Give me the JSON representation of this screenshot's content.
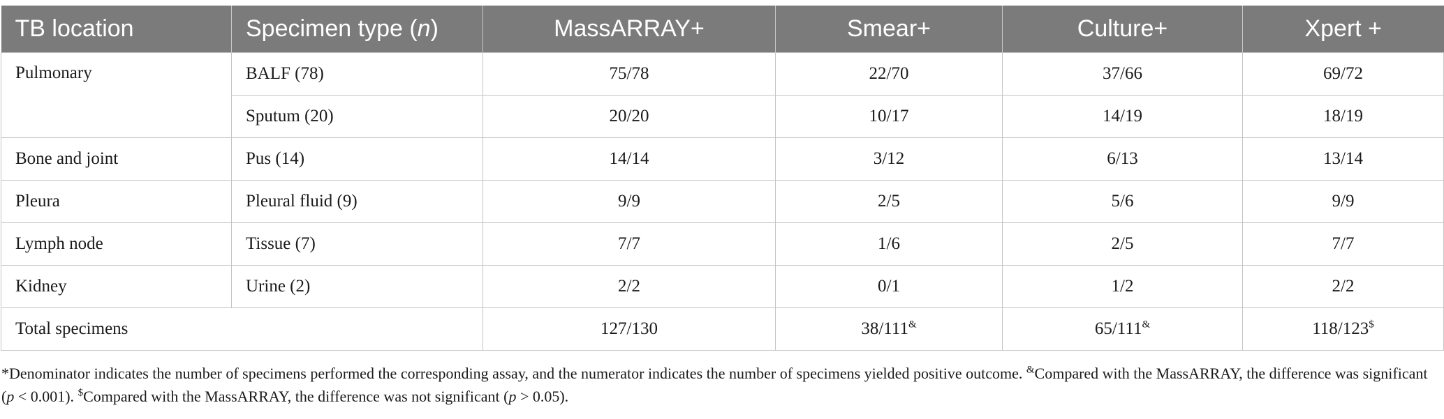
{
  "table": {
    "headers": {
      "location": "TB location",
      "specimen_prefix": "Specimen type (",
      "specimen_italic": "n",
      "specimen_suffix": ")",
      "massarray": "MassARRAY+",
      "smear": "Smear+",
      "culture": "Culture+",
      "xpert": "Xpert +"
    },
    "groups": [
      {
        "location": "Pulmonary",
        "rows": [
          {
            "specimen": "BALF (78)",
            "massarray": "75/78",
            "smear": "22/70",
            "culture": "37/66",
            "xpert": "69/72"
          },
          {
            "specimen": "Sputum (20)",
            "massarray": "20/20",
            "smear": "10/17",
            "culture": "14/19",
            "xpert": "18/19"
          }
        ]
      },
      {
        "location": "Bone and joint",
        "rows": [
          {
            "specimen": "Pus (14)",
            "massarray": "14/14",
            "smear": "3/12",
            "culture": "6/13",
            "xpert": "13/14"
          }
        ]
      },
      {
        "location": "Pleura",
        "rows": [
          {
            "specimen": "Pleural fluid (9)",
            "massarray": "9/9",
            "smear": "2/5",
            "culture": "5/6",
            "xpert": "9/9"
          }
        ]
      },
      {
        "location": "Lymph node",
        "rows": [
          {
            "specimen": "Tissue (7)",
            "massarray": "7/7",
            "smear": "1/6",
            "culture": "2/5",
            "xpert": "7/7"
          }
        ]
      },
      {
        "location": "Kidney",
        "rows": [
          {
            "specimen": "Urine (2)",
            "massarray": "2/2",
            "smear": "0/1",
            "culture": "1/2",
            "xpert": "2/2"
          }
        ]
      }
    ],
    "total": {
      "label": "Total specimens",
      "massarray": "127/130",
      "smear": "38/111",
      "smear_sup": "&",
      "culture": "65/111",
      "culture_sup": "&",
      "xpert": "118/123",
      "xpert_sup": "$"
    }
  },
  "footnote": {
    "part1": "*Denominator indicates the number of specimens performed the corresponding assay, and the numerator indicates the number of specimens yielded positive outcome. ",
    "sup_amp": "&",
    "part2": "Compared with the MassARRAY, the difference was significant (",
    "p1": "p",
    "part3": " < 0.001). ",
    "sup_dollar": "$",
    "part4": "Compared with the MassARRAY, the difference was not significant (",
    "p2": "p",
    "part5": " > 0.05)."
  }
}
